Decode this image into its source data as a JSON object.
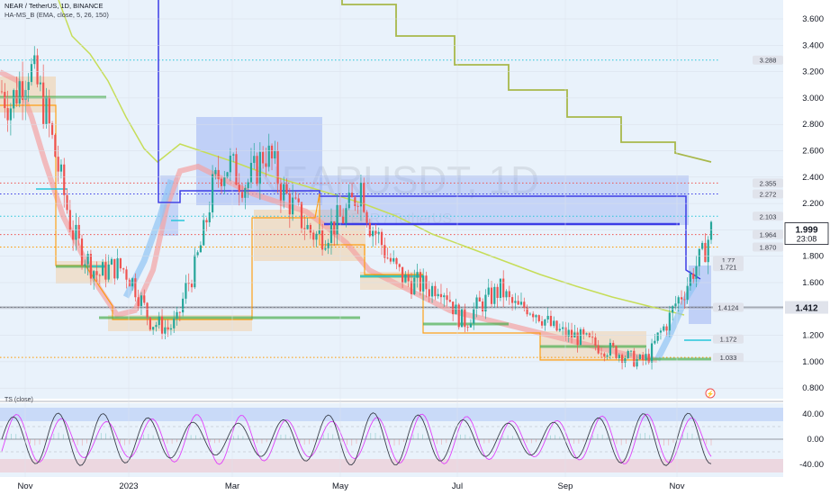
{
  "header": {
    "symbol_line": "NEAR / TetherUS, 1D, BINANCE",
    "indicator_line": "HA-MS_B (EMA, close, 5, 26, 150)",
    "watermark": "NEARUSDT, 1D",
    "watermark_sub": "NEAR / TetherUS"
  },
  "oscillator_label": "TS (close)",
  "colors": {
    "background": "#e9f2fb",
    "up": "#26a69a",
    "down": "#ef5350",
    "ema_band": "#f4a3a3",
    "ema_band_blue": "#90c4f4",
    "olive": "#a8b84a",
    "lightgreen": "#c6dd58",
    "blue_line": "#3c3ce6",
    "box_blue": "#8fa7f2",
    "box_orange": "#f5c58e",
    "orange_line": "#ff9800",
    "green_bar": "#4caf50",
    "cyan": "#26c6da",
    "price_tag_bg": "#e0e3eb",
    "current_tag_bg": "#131722"
  },
  "chart_data": [
    {
      "type": "line",
      "title": "",
      "xlabel": "",
      "ylabel": "",
      "ylim": [
        0.7,
        3.72
      ],
      "y_ticks": [
        "3.600",
        "3.400",
        "3.200",
        "3.000",
        "2.800",
        "2.600",
        "2.400",
        "2.200",
        "2.000",
        "1.800",
        "1.600",
        "1.400",
        "1.200",
        "1.000",
        "0.800"
      ],
      "x_ticks": [
        "Nov",
        "2023",
        "Mar",
        "May",
        "Jul",
        "Sep",
        "Nov"
      ],
      "price_levels": [
        {
          "label": "3.288",
          "value": 3.288
        },
        {
          "label": "2.355",
          "value": 2.355
        },
        {
          "label": "2.272",
          "value": 2.272
        },
        {
          "label": "2.103",
          "value": 2.103
        },
        {
          "label": "1.964",
          "value": 1.964
        },
        {
          "label": "1.870",
          "value": 1.87
        },
        {
          "label": "1.77",
          "value": 1.77
        },
        {
          "label": "1.721",
          "value": 1.721
        },
        {
          "label": "1.4124",
          "value": 1.4124
        },
        {
          "label": "1.172",
          "value": 1.172
        },
        {
          "label": "1.033",
          "value": 1.033
        }
      ],
      "current_price": {
        "label": "1.999",
        "countdown": "23:08",
        "value": 1.999
      },
      "reference_price": {
        "label": "1.412",
        "value": 1.412
      },
      "series": [
        {
          "values": [
            3.05,
            2.95,
            3.1,
            3.25,
            3.1,
            2.9,
            2.6,
            2.3,
            2.0,
            1.85,
            1.75,
            1.65,
            1.7,
            1.72,
            1.7,
            1.6,
            1.45,
            1.3,
            1.28,
            1.25,
            1.3,
            1.55,
            1.7,
            1.95,
            2.3,
            2.45,
            2.5,
            2.4,
            2.35,
            2.45,
            2.6,
            2.5,
            2.3,
            2.2,
            2.1,
            2.0,
            1.95,
            1.98,
            2.05,
            2.1,
            2.2,
            2.35,
            2.05,
            1.95,
            1.8,
            1.7,
            1.62,
            1.6,
            1.58,
            1.55,
            1.6,
            1.5,
            1.35,
            1.3,
            1.4,
            1.45,
            1.5,
            1.55,
            1.45,
            1.4,
            1.42,
            1.38,
            1.32,
            1.25,
            1.22,
            1.2,
            1.18,
            1.15,
            1.12,
            1.1,
            1.08,
            1.05,
            1.02,
            1.0,
            1.05,
            1.2,
            1.3,
            1.45,
            1.55,
            1.7,
            1.8,
            1.999
          ]
        }
      ]
    },
    {
      "type": "line",
      "title": "",
      "ylim": [
        -52,
        52
      ],
      "y_ticks": [
        "40.00",
        "0.00",
        "-40.00"
      ]
    }
  ]
}
